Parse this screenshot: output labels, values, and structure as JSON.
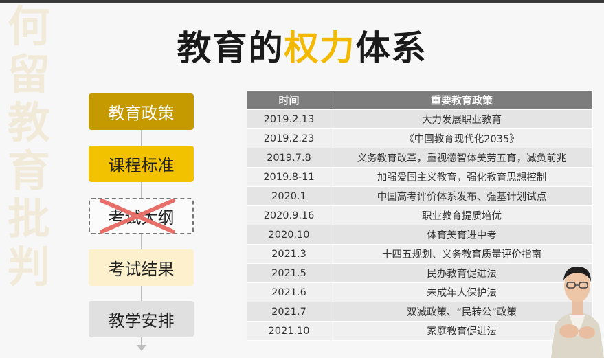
{
  "watermark": {
    "text": "何留教育批判"
  },
  "title": {
    "part1": "教育的",
    "highlight": "权力",
    "part2": "体系"
  },
  "flow": {
    "items": [
      {
        "label": "教育政策"
      },
      {
        "label": "课程标准"
      },
      {
        "label": "考试大纲",
        "crossed": true
      },
      {
        "label": "考试结果"
      },
      {
        "label": "教学安排"
      }
    ]
  },
  "table": {
    "headers": {
      "time": "时间",
      "policy": "重要教育政策"
    },
    "rows": [
      {
        "time": "2019.2.13",
        "policy": "大力发展职业教育"
      },
      {
        "time": "2019.2.23",
        "policy": "《中国教育现代化2035》"
      },
      {
        "time": "2019.7.8",
        "policy": "义务教育改革，重视德智体美劳五育，减负前兆"
      },
      {
        "time": "2019.8-11",
        "policy": "加强爱国主义教育，强化教育思想控制"
      },
      {
        "time": "2020.1",
        "policy": "中国高考评价体系发布、强基计划试点"
      },
      {
        "time": "2020.9.16",
        "policy": "职业教育提质培优"
      },
      {
        "time": "2020.10",
        "policy": "体育美育进中考"
      },
      {
        "time": "2021.3",
        "policy": "十四五规划、义务教育质量评价指南"
      },
      {
        "time": "2021.5",
        "policy": "民办教育促进法"
      },
      {
        "time": "2021.6",
        "policy": "未成年人保护法"
      },
      {
        "time": "2021.7",
        "policy": "双减政策、“民转公”政策"
      },
      {
        "time": "2021.10",
        "policy": "家庭教育促进法"
      }
    ]
  },
  "colors": {
    "accent": "#f2b900",
    "dark_gold": "#c59a00",
    "table_header": "#7d7d7d"
  }
}
